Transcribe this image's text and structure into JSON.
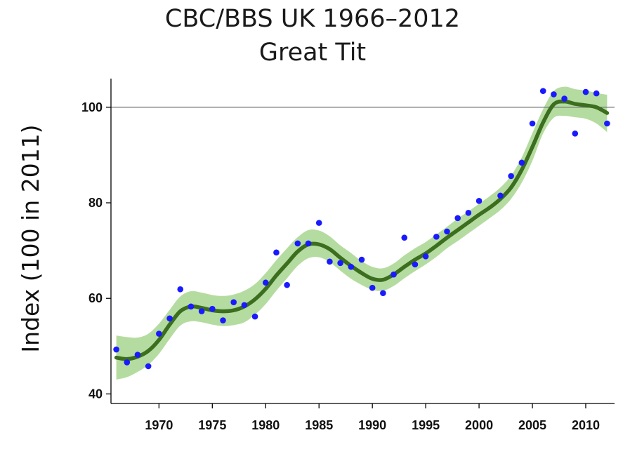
{
  "chart_data": {
    "type": "line",
    "title": "CBC/BBS UK 1966–2012",
    "subtitle": "Great Tit",
    "ylabel": "Index (100 in 2011)",
    "xlabel": "",
    "xlim": [
      1965.5,
      2012.7
    ],
    "ylim": [
      38,
      106
    ],
    "xticks": [
      1970,
      1975,
      1980,
      1985,
      1990,
      1995,
      2000,
      2005,
      2010
    ],
    "yticks": [
      40,
      60,
      80,
      100
    ],
    "reference_line": 100,
    "grid": false,
    "colors": {
      "points": "#1a1aff",
      "trend": "#3b6e1e",
      "band": "#b5dca0",
      "reference": "#777777"
    },
    "series": [
      {
        "kind": "points",
        "x": [
          1966,
          1967,
          1968,
          1969,
          1970,
          1971,
          1972,
          1973,
          1974,
          1975,
          1976,
          1977,
          1978,
          1979,
          1980,
          1981,
          1982,
          1983,
          1984,
          1985,
          1986,
          1987,
          1988,
          1989,
          1990,
          1991,
          1992,
          1993,
          1994,
          1995,
          1996,
          1997,
          1998,
          1999,
          2000,
          2002,
          2003,
          2004,
          2005,
          2006,
          2007,
          2008,
          2009,
          2010,
          2011,
          2012
        ],
        "y": [
          49.3,
          46.6,
          48.2,
          45.8,
          52.6,
          55.8,
          61.9,
          58.3,
          57.3,
          57.8,
          55.4,
          59.2,
          58.6,
          56.2,
          63.3,
          69.6,
          62.8,
          71.5,
          71.5,
          75.8,
          67.7,
          67.4,
          66.6,
          68.1,
          62.2,
          61.1,
          65.0,
          72.7,
          67.1,
          68.8,
          72.9,
          74.0,
          76.8,
          77.9,
          80.4,
          81.5,
          85.6,
          88.4,
          96.6,
          103.4,
          102.7,
          101.8,
          94.5,
          103.2,
          102.9,
          96.6
        ]
      },
      {
        "kind": "trend",
        "x": [
          1966,
          1967,
          1968,
          1969,
          1970,
          1971,
          1972,
          1973,
          1974,
          1975,
          1976,
          1977,
          1978,
          1979,
          1980,
          1981,
          1982,
          1983,
          1984,
          1985,
          1986,
          1987,
          1988,
          1989,
          1990,
          1991,
          1992,
          1993,
          1994,
          1995,
          1996,
          1997,
          1998,
          1999,
          2000,
          2001,
          2002,
          2003,
          2004,
          2005,
          2006,
          2007,
          2008,
          2009,
          2010,
          2011,
          2012
        ],
        "y": [
          47.6,
          47.3,
          47.8,
          49.0,
          51.3,
          54.5,
          57.3,
          58.3,
          58.0,
          57.5,
          57.3,
          57.5,
          58.3,
          59.8,
          62.0,
          64.8,
          67.3,
          69.8,
          71.3,
          71.3,
          70.3,
          68.5,
          66.8,
          65.3,
          64.1,
          63.9,
          65.0,
          66.6,
          68.1,
          69.4,
          71.0,
          72.7,
          74.3,
          75.9,
          77.5,
          79.0,
          80.8,
          83.2,
          86.9,
          91.7,
          96.8,
          100.6,
          101.2,
          100.7,
          100.4,
          100.0,
          98.8
        ]
      },
      {
        "kind": "band_lower",
        "y": [
          43.0,
          43.5,
          44.6,
          46.1,
          48.4,
          51.5,
          54.3,
          55.2,
          55.0,
          54.5,
          54.2,
          54.4,
          55.0,
          56.6,
          58.8,
          61.6,
          64.2,
          66.8,
          68.4,
          68.6,
          67.6,
          65.8,
          64.1,
          62.8,
          61.8,
          61.6,
          62.6,
          64.2,
          65.7,
          67.1,
          68.7,
          70.5,
          72.0,
          73.6,
          75.2,
          76.8,
          78.5,
          80.8,
          84.2,
          88.8,
          94.5,
          97.8,
          98.2,
          97.9,
          97.6,
          96.6,
          94.8
        ]
      },
      {
        "kind": "band_upper",
        "y": [
          52.2,
          51.9,
          51.8,
          52.6,
          54.7,
          57.6,
          60.4,
          61.5,
          61.2,
          60.7,
          60.5,
          60.8,
          61.6,
          63.0,
          65.3,
          68.0,
          70.5,
          72.8,
          74.3,
          74.2,
          73.0,
          71.1,
          69.5,
          67.8,
          66.6,
          66.3,
          67.3,
          69.0,
          70.5,
          71.8,
          73.4,
          75.0,
          76.7,
          78.2,
          79.8,
          81.4,
          83.2,
          85.7,
          89.5,
          94.6,
          99.6,
          103.4,
          104.3,
          103.8,
          103.5,
          103.0,
          102.6
        ]
      }
    ]
  }
}
